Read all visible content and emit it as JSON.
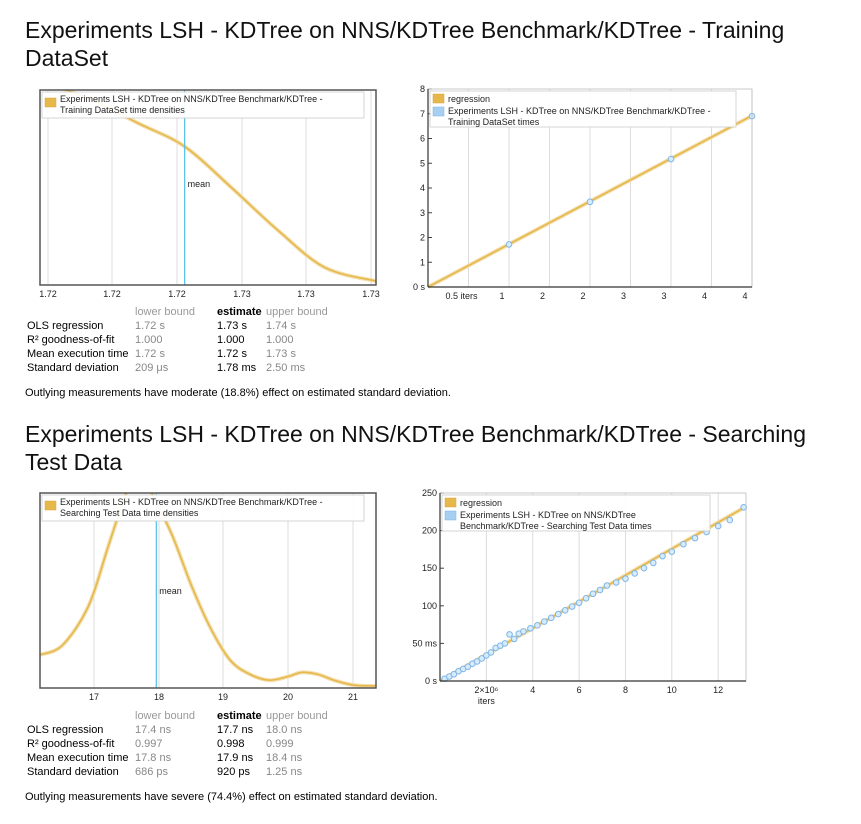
{
  "sections": [
    {
      "title": "Experiments LSH - KDTree on NNS/KDTree Benchmark/KDTree - Training DataSet",
      "stats_header": {
        "lower": "lower bound",
        "estimate": "estimate",
        "upper": "upper bound"
      },
      "stats": [
        {
          "label": "OLS regression",
          "lower": "1.72 s",
          "estimate": "1.73 s",
          "upper": "1.74 s"
        },
        {
          "label": "R² goodness-of-fit",
          "lower": "1.000",
          "estimate": "1.000",
          "upper": "1.000"
        },
        {
          "label": "Mean execution time",
          "lower": "1.72 s",
          "estimate": "1.72 s",
          "upper": "1.73 s"
        },
        {
          "label": "Standard deviation",
          "lower": "209 μs",
          "estimate": "1.78 ms",
          "upper": "2.50 ms"
        }
      ],
      "note": "Outlying measurements have moderate (18.8%) effect on estimated standard deviation."
    },
    {
      "title": "Experiments LSH - KDTree on NNS/KDTree Benchmark/KDTree - Searching Test Data",
      "stats_header": {
        "lower": "lower bound",
        "estimate": "estimate",
        "upper": "upper bound"
      },
      "stats": [
        {
          "label": "OLS regression",
          "lower": "17.4 ns",
          "estimate": "17.7 ns",
          "upper": "18.0 ns"
        },
        {
          "label": "R² goodness-of-fit",
          "lower": "0.997",
          "estimate": "0.998",
          "upper": "0.999"
        },
        {
          "label": "Mean execution time",
          "lower": "17.8 ns",
          "estimate": "17.9 ns",
          "upper": "18.4 ns"
        },
        {
          "label": "Standard deviation",
          "lower": "686 ps",
          "estimate": "920 ps",
          "upper": "1.25 ns"
        }
      ],
      "note": "Outlying measurements have severe (74.4%) effect on estimated standard deviation."
    }
  ],
  "colors": {
    "density": "#e6b84c",
    "regression": "#e6b84c",
    "points": "#a6cff2",
    "mean": "#4ec0e8",
    "grid": "#dcdcdc",
    "frame": "#555555"
  },
  "chart_data": [
    {
      "type": "line",
      "legend": [
        "Experiments LSH - KDTree on NNS/KDTree Benchmark/KDTree - Training DataSet time densities"
      ],
      "mean_label": "mean",
      "x_tick_labels": [
        "1.72",
        "1.72",
        "1.72",
        "1.73",
        "1.73",
        "1.73"
      ],
      "xlim": [
        1.7173,
        1.7317
      ],
      "ylim": [
        0,
        1
      ],
      "mean": 1.7235,
      "x": [
        1.7173,
        1.7195,
        1.7215,
        1.7235,
        1.7255,
        1.7275,
        1.7295,
        1.7317
      ],
      "y": [
        1.05,
        0.95,
        0.83,
        0.71,
        0.5,
        0.28,
        0.09,
        0.02
      ],
      "grid": true,
      "legend_position": "top-left"
    },
    {
      "type": "scatter",
      "legend": [
        "regression",
        "Experiments LSH - KDTree on NNS/KDTree Benchmark/KDTree - Training DataSet times"
      ],
      "x_tick_labels": [
        "0.5 iters",
        "1",
        "2",
        "2",
        "3",
        "3",
        "4",
        "4"
      ],
      "y_tick_labels": [
        "0 s",
        "1",
        "2",
        "3",
        "4",
        "5",
        "6",
        "7",
        "8"
      ],
      "xlim": [
        0,
        4
      ],
      "ylim": [
        0,
        8
      ],
      "points": [
        {
          "x": 1,
          "y": 1.72
        },
        {
          "x": 2,
          "y": 3.44
        },
        {
          "x": 3,
          "y": 5.17
        },
        {
          "x": 4,
          "y": 6.9
        }
      ],
      "regression": [
        [
          0,
          0
        ],
        [
          4,
          6.92
        ]
      ],
      "grid": true,
      "legend_position": "top-left"
    },
    {
      "type": "line",
      "legend": [
        "Experiments LSH - KDTree on NNS/KDTree Benchmark/KDTree - Searching Test Data time densities"
      ],
      "mean_label": "mean",
      "x_tick_labels": [
        "17",
        "18",
        "19",
        "20",
        "21"
      ],
      "xlim": [
        16.15,
        21.35
      ],
      "ylim": [
        0,
        1
      ],
      "mean": 17.95,
      "x": [
        16.15,
        16.5,
        16.9,
        17.2,
        17.45,
        17.6,
        17.75,
        17.95,
        18.2,
        18.5,
        18.8,
        19.1,
        19.4,
        19.7,
        20.0,
        20.2,
        20.45,
        20.7,
        21.0,
        21.35
      ],
      "y": [
        0.17,
        0.22,
        0.42,
        0.72,
        0.97,
        1.08,
        1.08,
        0.95,
        0.78,
        0.52,
        0.3,
        0.14,
        0.07,
        0.04,
        0.06,
        0.08,
        0.07,
        0.04,
        0.015,
        0.01
      ],
      "grid": true,
      "legend_position": "top-left"
    },
    {
      "type": "scatter",
      "legend": [
        "regression",
        "Experiments LSH - KDTree on NNS/KDTree Benchmark/KDTree - Searching Test Data times"
      ],
      "x_tick_labels": [
        "2×10⁶\niters",
        "4",
        "6",
        "8",
        "10",
        "12"
      ],
      "y_tick_labels": [
        "0 s",
        "50 ms",
        "100",
        "150",
        "200",
        "250"
      ],
      "xlim": [
        0,
        13.2
      ],
      "ylim": [
        0,
        250
      ],
      "points": [
        {
          "x": 0.2,
          "y": 3
        },
        {
          "x": 0.4,
          "y": 6
        },
        {
          "x": 0.6,
          "y": 9
        },
        {
          "x": 0.8,
          "y": 13
        },
        {
          "x": 1.0,
          "y": 16
        },
        {
          "x": 1.2,
          "y": 19
        },
        {
          "x": 1.4,
          "y": 23
        },
        {
          "x": 1.6,
          "y": 26
        },
        {
          "x": 1.8,
          "y": 30
        },
        {
          "x": 2.0,
          "y": 34
        },
        {
          "x": 2.2,
          "y": 38
        },
        {
          "x": 2.4,
          "y": 44
        },
        {
          "x": 2.6,
          "y": 47
        },
        {
          "x": 2.8,
          "y": 50
        },
        {
          "x": 3.0,
          "y": 62
        },
        {
          "x": 3.2,
          "y": 56
        },
        {
          "x": 3.4,
          "y": 63
        },
        {
          "x": 3.6,
          "y": 66
        },
        {
          "x": 3.9,
          "y": 70
        },
        {
          "x": 4.2,
          "y": 74
        },
        {
          "x": 4.5,
          "y": 79
        },
        {
          "x": 4.8,
          "y": 84
        },
        {
          "x": 5.1,
          "y": 89
        },
        {
          "x": 5.4,
          "y": 94
        },
        {
          "x": 5.7,
          "y": 99
        },
        {
          "x": 6.0,
          "y": 104
        },
        {
          "x": 6.3,
          "y": 110
        },
        {
          "x": 6.6,
          "y": 116
        },
        {
          "x": 6.9,
          "y": 121
        },
        {
          "x": 7.2,
          "y": 127
        },
        {
          "x": 7.6,
          "y": 131
        },
        {
          "x": 8.0,
          "y": 136
        },
        {
          "x": 8.4,
          "y": 143
        },
        {
          "x": 8.8,
          "y": 150
        },
        {
          "x": 9.2,
          "y": 157
        },
        {
          "x": 9.6,
          "y": 166
        },
        {
          "x": 10.0,
          "y": 172
        },
        {
          "x": 10.5,
          "y": 182
        },
        {
          "x": 11.0,
          "y": 190
        },
        {
          "x": 11.5,
          "y": 198
        },
        {
          "x": 12.0,
          "y": 206
        },
        {
          "x": 12.5,
          "y": 214
        },
        {
          "x": 13.1,
          "y": 231
        }
      ],
      "regression": [
        [
          0,
          0
        ],
        [
          13.2,
          232
        ]
      ],
      "grid": true,
      "legend_position": "top-left"
    }
  ]
}
